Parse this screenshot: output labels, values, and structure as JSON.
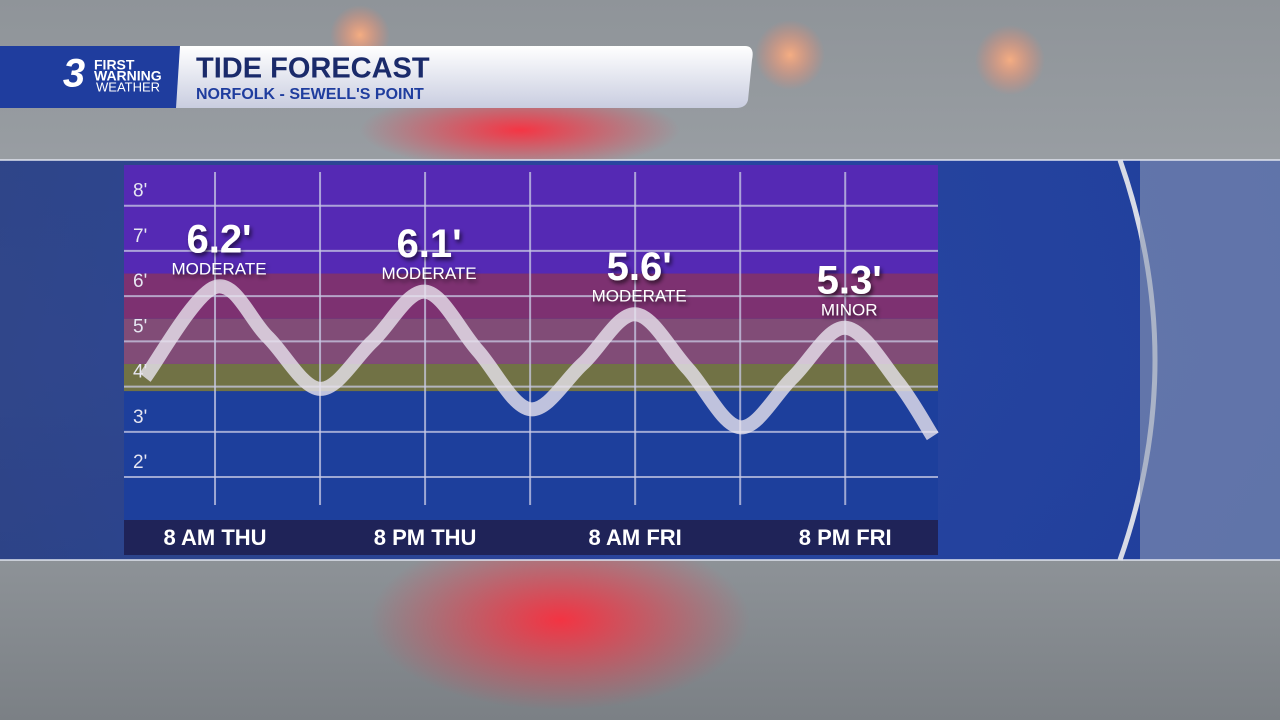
{
  "header": {
    "logo_number": "3",
    "logo_line1": "FIRST",
    "logo_line2": "WARNING",
    "logo_line3": "WEATHER",
    "title": "TIDE FORECAST",
    "subtitle": "NORFOLK - SEWELL'S POINT"
  },
  "chart_data": {
    "type": "line",
    "x": [
      -4,
      0,
      3,
      6,
      9,
      12,
      15,
      18,
      21,
      24,
      27,
      30,
      33,
      36,
      39,
      41
    ],
    "series": [
      {
        "color": "#e8e4ee",
        "values": [
          4.2,
          6.2,
          5.1,
          3.95,
          5.0,
          6.1,
          4.8,
          3.5,
          4.5,
          5.6,
          4.4,
          3.1,
          4.2,
          5.3,
          4.1,
          2.9
        ]
      }
    ],
    "peaks": [
      {
        "x": 0,
        "y": 6.2,
        "label": "6.2'",
        "category": "MODERATE"
      },
      {
        "x": 12,
        "y": 6.1,
        "label": "6.1'",
        "category": "MODERATE"
      },
      {
        "x": 24,
        "y": 5.6,
        "label": "5.6'",
        "category": "MODERATE"
      },
      {
        "x": 36,
        "y": 5.3,
        "label": "5.3'",
        "category": "MINOR"
      }
    ],
    "bands": [
      {
        "from": 6.5,
        "to": 8.9,
        "color": "#5a27b6"
      },
      {
        "from": 5.5,
        "to": 6.5,
        "color": "#86306e"
      },
      {
        "from": 4.5,
        "to": 5.5,
        "color": "#8a4d74"
      },
      {
        "from": 3.9,
        "to": 4.5,
        "color": "#78763e"
      }
    ],
    "xlim": [
      -5.2,
      41.3
    ],
    "ylim": [
      1.05,
      8.9
    ],
    "xticks": [
      {
        "value": 0,
        "label": "8 AM THU"
      },
      {
        "value": 6,
        "label": null
      },
      {
        "value": 12,
        "label": "8 PM THU"
      },
      {
        "value": 18,
        "label": null
      },
      {
        "value": 24,
        "label": "8 AM FRI"
      },
      {
        "value": 30,
        "label": null
      },
      {
        "value": 36,
        "label": "8 PM FRI"
      }
    ],
    "yticks": [
      {
        "value": 2,
        "label": "2'"
      },
      {
        "value": 3,
        "label": "3'"
      },
      {
        "value": 4,
        "label": "4'"
      },
      {
        "value": 5,
        "label": "5'"
      },
      {
        "value": 6,
        "label": "6'"
      },
      {
        "value": 7,
        "label": "7'"
      },
      {
        "value": 8,
        "label": "8'"
      }
    ],
    "grid": true
  }
}
